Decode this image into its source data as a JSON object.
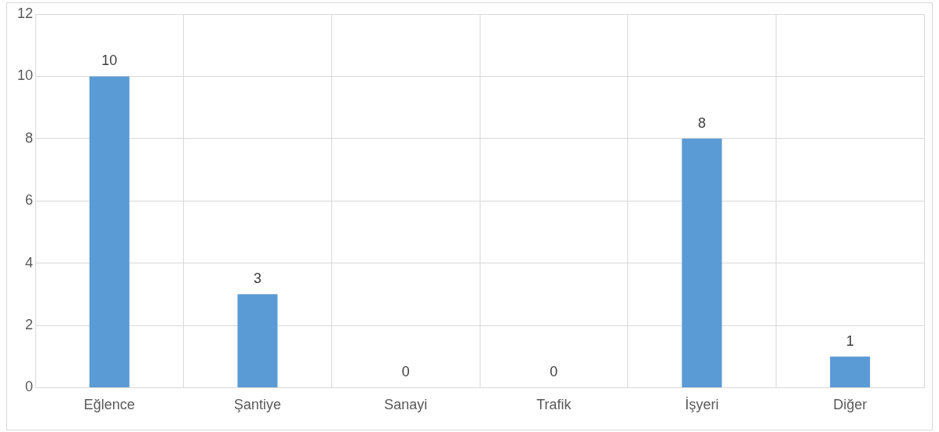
{
  "chart_data": {
    "type": "bar",
    "categories": [
      "Eğlence",
      "Şantiye",
      "Sanayi",
      "Trafik",
      "İşyeri",
      "Diğer"
    ],
    "values": [
      10,
      3,
      0,
      0,
      8,
      1
    ],
    "color": "#5b9bd5",
    "ylim": [
      0,
      12
    ],
    "yticks": [
      0,
      2,
      4,
      6,
      8,
      10,
      12
    ],
    "grid": true,
    "data_labels": true
  }
}
